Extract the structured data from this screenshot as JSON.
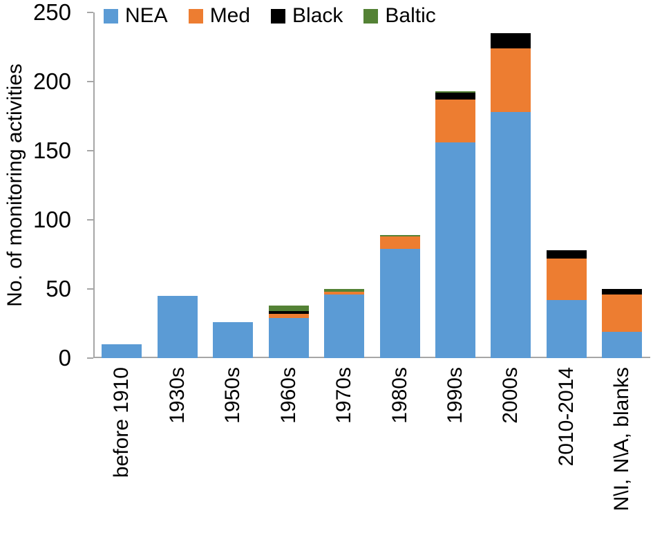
{
  "chart_data": {
    "type": "bar",
    "stacked": true,
    "title": "",
    "xlabel": "",
    "ylabel": "No. of monitoring activities",
    "ylim": [
      0,
      250
    ],
    "yticks": [
      0,
      50,
      100,
      150,
      200,
      250
    ],
    "grid": false,
    "legend_position": "top",
    "axis_color": "#a6a6a6",
    "text_color": "#000000",
    "categories": [
      "before 1910",
      "1930s",
      "1950s",
      "1960s",
      "1970s",
      "1980s",
      "1990s",
      "2000s",
      "2010-2014",
      "N\\I, N\\A, blanks"
    ],
    "series": [
      {
        "name": "NEA",
        "color": "#5B9BD5",
        "values": [
          10,
          45,
          26,
          29,
          46,
          79,
          156,
          178,
          42,
          19
        ]
      },
      {
        "name": "Med",
        "color": "#ED7D31",
        "values": [
          0,
          0,
          0,
          3,
          2,
          9,
          31,
          46,
          30,
          27
        ]
      },
      {
        "name": "Black",
        "color": "#000000",
        "values": [
          0,
          0,
          0,
          2,
          0,
          0,
          5,
          11,
          6,
          4
        ]
      },
      {
        "name": "Baltic",
        "color": "#548235",
        "values": [
          0,
          0,
          0,
          4,
          2,
          1,
          1,
          0,
          0,
          0
        ]
      }
    ],
    "totals": [
      10,
      45,
      26,
      38,
      50,
      89,
      193,
      235,
      78,
      50
    ]
  }
}
